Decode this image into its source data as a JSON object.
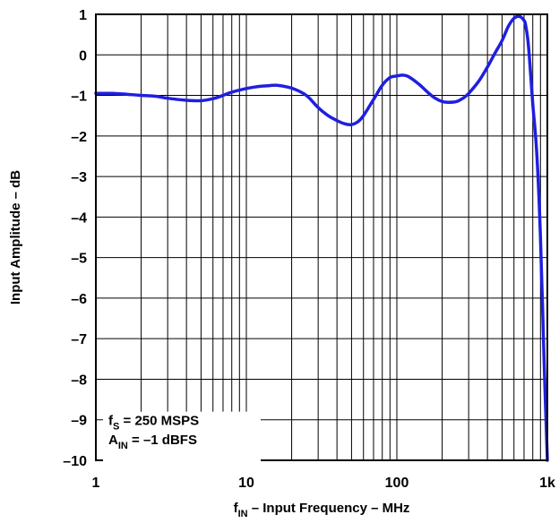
{
  "chart_data": {
    "type": "line",
    "title": "",
    "xlabel": {
      "base": "f",
      "sub": "IN",
      "rest": " – Input Frequency – MHz"
    },
    "ylabel": "Input Amplitude – dB",
    "x_scale": "log",
    "xlim": [
      1,
      1000
    ],
    "ylim": [
      -10,
      1
    ],
    "x_ticks": [
      {
        "value": 1,
        "label": "1"
      },
      {
        "value": 10,
        "label": "10"
      },
      {
        "value": 100,
        "label": "100"
      },
      {
        "value": 1000,
        "label": "1k"
      }
    ],
    "y_ticks": [
      {
        "value": 1,
        "label": "1"
      },
      {
        "value": 0,
        "label": "0"
      },
      {
        "value": -1,
        "label": "–1"
      },
      {
        "value": -2,
        "label": "–2"
      },
      {
        "value": -3,
        "label": "–3"
      },
      {
        "value": -4,
        "label": "–4"
      },
      {
        "value": -5,
        "label": "–5"
      },
      {
        "value": -6,
        "label": "–6"
      },
      {
        "value": -7,
        "label": "–7"
      },
      {
        "value": -8,
        "label": "–8"
      },
      {
        "value": -9,
        "label": "–9"
      },
      {
        "value": -10,
        "label": "–10"
      }
    ],
    "grid": true,
    "annotation": {
      "position": "bottom-left",
      "lines": [
        {
          "base": "f",
          "sub": "S",
          "rest": " = 250 MSPS"
        },
        {
          "base": "A",
          "sub": "IN",
          "rest": " = –1 dBFS"
        }
      ]
    },
    "series": [
      {
        "color": "#1f1fe0",
        "x": [
          1,
          1.3,
          1.6,
          2,
          2.5,
          3,
          4,
          5,
          6,
          7,
          8,
          10,
          12,
          14,
          16,
          20,
          25,
          30,
          35,
          40,
          45,
          50,
          55,
          60,
          70,
          80,
          90,
          100,
          110,
          120,
          140,
          160,
          180,
          200,
          220,
          250,
          280,
          300,
          350,
          400,
          450,
          500,
          550,
          600,
          650,
          700,
          720,
          750,
          800,
          850,
          900,
          950,
          1000
        ],
        "y": [
          -0.95,
          -0.95,
          -0.97,
          -1.0,
          -1.02,
          -1.07,
          -1.12,
          -1.13,
          -1.08,
          -1.0,
          -0.92,
          -0.83,
          -0.78,
          -0.76,
          -0.75,
          -0.82,
          -1.0,
          -1.3,
          -1.5,
          -1.62,
          -1.7,
          -1.72,
          -1.65,
          -1.5,
          -1.1,
          -0.75,
          -0.56,
          -0.52,
          -0.5,
          -0.54,
          -0.72,
          -0.92,
          -1.07,
          -1.15,
          -1.17,
          -1.15,
          -1.05,
          -0.95,
          -0.65,
          -0.3,
          0.05,
          0.35,
          0.7,
          0.9,
          0.95,
          0.85,
          0.7,
          0.2,
          -1.2,
          -2.4,
          -4.5,
          -7.5,
          -10
        ]
      }
    ]
  }
}
